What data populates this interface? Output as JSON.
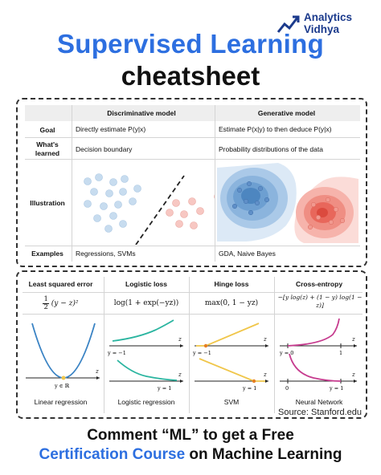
{
  "brand": {
    "line1": "Analytics",
    "line2": "Vidhya"
  },
  "title": {
    "line1": "Supervised Learning",
    "line2": "cheatsheet"
  },
  "comparison": {
    "headers": [
      "Discriminative model",
      "Generative model"
    ],
    "rows": {
      "goal": {
        "label": "Goal",
        "disc": "Directly estimate P(y|x)",
        "gen": "Estimate P(x|y) to then deduce P(y|x)"
      },
      "learned": {
        "label1": "What's",
        "label2": "learned",
        "disc": "Decision boundary",
        "gen": "Probability distributions of the data"
      },
      "illustration": {
        "label": "Illustration"
      },
      "examples": {
        "label": "Examples",
        "disc": "Regressions, SVMs",
        "gen": "GDA, Naive Bayes"
      }
    },
    "colors": {
      "class_blue": "#c7dcef",
      "class_red": "#f7c7c2"
    }
  },
  "losses": {
    "columns": [
      {
        "title": "Least squared error",
        "formula_prefix": "1",
        "formula_den": "2",
        "formula": "(y − z)²",
        "caption": "Linear regression",
        "axis_label": "z",
        "point_label": "y ∈ ℝ"
      },
      {
        "title": "Logistic loss",
        "formula": "log(1 + exp(−yz))",
        "caption": "Logistic regression",
        "axis_label": "z",
        "label_top": "y = −1",
        "label_bottom": "y = 1"
      },
      {
        "title": "Hinge loss",
        "formula": "max(0, 1 − yz)",
        "caption": "SVM",
        "axis_label": "z",
        "label_top": "y = −1",
        "label_bottom": "y = 1"
      },
      {
        "title": "Cross-entropy",
        "formula_line1": "−[y log(z) + (1 − y) log(1 −",
        "formula_line2": "z)]",
        "caption": "Neural Network",
        "axis_label": "z",
        "top_tick0": "y = 0",
        "top_tick1": "1",
        "bottom_tick0": "0",
        "bottom_tick1": "y = 1"
      }
    ],
    "colors": {
      "teal": "#2bb5a0",
      "blue": "#3a83c4",
      "yellow": "#f0c64a",
      "magenta": "#c63b8e",
      "orange": "#e67e22"
    }
  },
  "source": "Source: Stanford.edu",
  "cta": {
    "line1": "Comment “ML” to get a Free",
    "line2_highlight": "Certification Course",
    "line2_rest": " on Machine Learning"
  }
}
